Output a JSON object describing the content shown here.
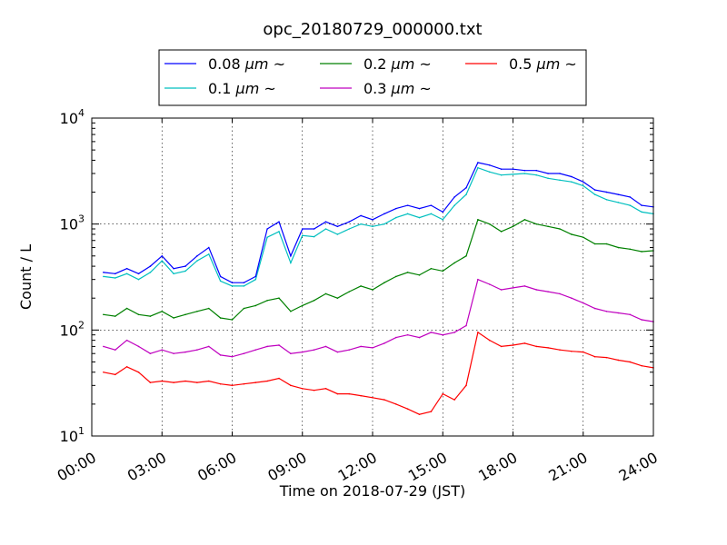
{
  "chart_data": {
    "type": "line",
    "title": "opc_20180729_000000.txt",
    "xlabel": "Time on 2018-07-29 (JST)",
    "ylabel": "Count / L",
    "x_unit": "hours (JST)",
    "xlim": [
      0,
      24
    ],
    "ylim": [
      10,
      10000
    ],
    "y_scale": "log",
    "grid": true,
    "legend_position": "top-center, above plot",
    "x_ticks": [
      "00:00",
      "03:00",
      "06:00",
      "09:00",
      "12:00",
      "15:00",
      "18:00",
      "21:00",
      "24:00"
    ],
    "y_ticks": [
      {
        "base": "10",
        "exp": "1",
        "value": 10
      },
      {
        "base": "10",
        "exp": "2",
        "value": 100
      },
      {
        "base": "10",
        "exp": "3",
        "value": 1000
      },
      {
        "base": "10",
        "exp": "4",
        "value": 10000
      }
    ],
    "x": [
      0.5,
      1.0,
      1.5,
      2.0,
      2.5,
      3.0,
      3.5,
      4.0,
      4.5,
      5.0,
      5.5,
      6.0,
      6.5,
      7.0,
      7.5,
      8.0,
      8.5,
      9.0,
      9.5,
      10.0,
      10.5,
      11.0,
      11.5,
      12.0,
      12.5,
      13.0,
      13.5,
      14.0,
      14.5,
      15.0,
      15.5,
      16.0,
      16.5,
      17.0,
      17.5,
      18.0,
      18.5,
      19.0,
      19.5,
      20.0,
      20.5,
      21.0,
      21.5,
      22.0,
      22.5,
      23.0,
      23.5,
      24.0
    ],
    "series": [
      {
        "name": "0.08",
        "unit": "μm",
        "suffix": "~",
        "color": "#0000ff",
        "values": [
          350,
          340,
          380,
          340,
          400,
          500,
          380,
          400,
          500,
          600,
          320,
          280,
          280,
          320,
          900,
          1050,
          500,
          900,
          900,
          1050,
          950,
          1050,
          1200,
          1100,
          1250,
          1400,
          1500,
          1400,
          1500,
          1300,
          1800,
          2200,
          3800,
          3600,
          3300,
          3300,
          3200,
          3200,
          3000,
          3000,
          2800,
          2500,
          2100,
          2000,
          1900,
          1800,
          1500,
          1450
        ]
      },
      {
        "name": "0.1",
        "unit": "μm",
        "suffix": "~",
        "color": "#00bfbf",
        "values": [
          320,
          310,
          340,
          300,
          350,
          450,
          340,
          360,
          450,
          520,
          290,
          260,
          260,
          300,
          750,
          850,
          430,
          780,
          760,
          900,
          800,
          900,
          1000,
          950,
          1000,
          1150,
          1250,
          1150,
          1250,
          1100,
          1500,
          1900,
          3400,
          3100,
          2900,
          2950,
          3000,
          2900,
          2700,
          2600,
          2500,
          2300,
          1900,
          1700,
          1600,
          1500,
          1300,
          1250
        ]
      },
      {
        "name": "0.2",
        "unit": "μm",
        "suffix": "~",
        "color": "#008000",
        "values": [
          140,
          135,
          160,
          140,
          135,
          150,
          130,
          140,
          150,
          160,
          130,
          125,
          160,
          170,
          190,
          200,
          150,
          170,
          190,
          220,
          200,
          230,
          260,
          240,
          280,
          320,
          350,
          330,
          380,
          360,
          430,
          500,
          1100,
          1000,
          850,
          950,
          1100,
          1000,
          950,
          900,
          800,
          750,
          650,
          650,
          600,
          580,
          550,
          560
        ]
      },
      {
        "name": "0.3",
        "unit": "μm",
        "suffix": "~",
        "color": "#bf00bf",
        "values": [
          70,
          65,
          80,
          70,
          60,
          65,
          60,
          62,
          65,
          70,
          58,
          56,
          60,
          65,
          70,
          72,
          60,
          62,
          65,
          70,
          62,
          65,
          70,
          68,
          75,
          85,
          90,
          85,
          95,
          90,
          95,
          110,
          300,
          270,
          240,
          250,
          260,
          240,
          230,
          220,
          200,
          180,
          160,
          150,
          145,
          140,
          125,
          120
        ]
      },
      {
        "name": "0.5",
        "unit": "μm",
        "suffix": "~",
        "color": "#ff0000",
        "values": [
          40,
          38,
          45,
          40,
          32,
          33,
          32,
          33,
          32,
          33,
          31,
          30,
          31,
          32,
          33,
          35,
          30,
          28,
          27,
          28,
          25,
          25,
          24,
          23,
          22,
          20,
          18,
          16,
          17,
          25,
          22,
          30,
          95,
          80,
          70,
          72,
          75,
          70,
          68,
          65,
          63,
          62,
          56,
          55,
          52,
          50,
          46,
          44
        ]
      }
    ]
  }
}
